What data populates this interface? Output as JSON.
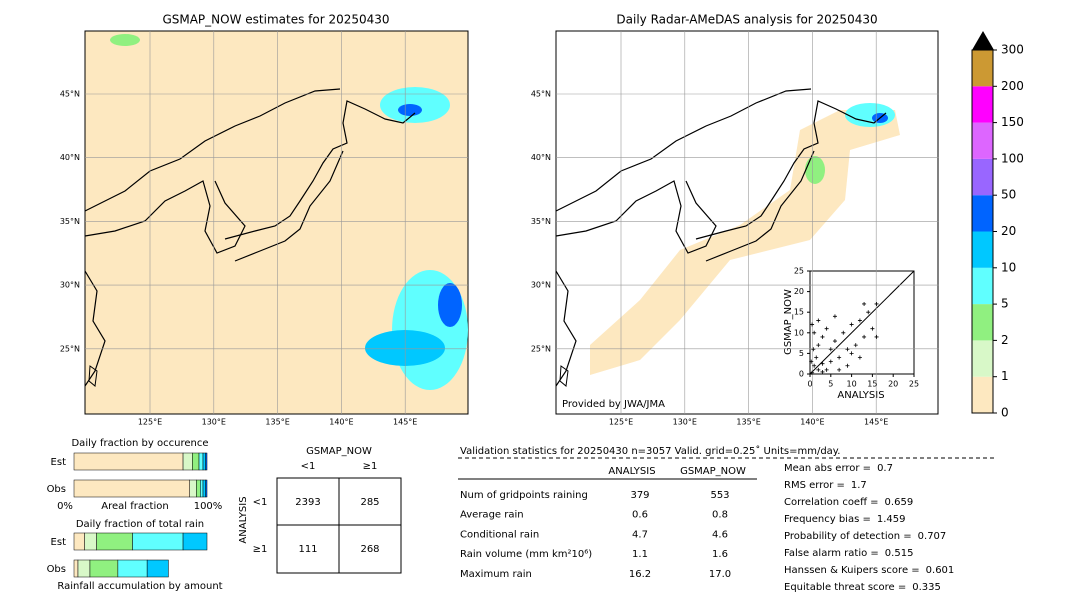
{
  "maps": [
    {
      "title": "GSMAP_NOW estimates for 20250430",
      "lat_labels": [
        "45°N",
        "40°N",
        "35°N",
        "30°N",
        "25°N"
      ],
      "lon_labels": [
        "125°E",
        "130°E",
        "135°E",
        "140°E",
        "145°E"
      ]
    },
    {
      "title": "Daily Radar-AMeDAS analysis for 20250430",
      "lat_labels": [
        "45°N",
        "40°N",
        "35°N",
        "30°N",
        "25°N"
      ],
      "lon_labels": [
        "125°E",
        "130°E",
        "135°E",
        "140°E",
        "145°E"
      ],
      "credit": "Provided by JWA/JMA"
    }
  ],
  "colorbar": {
    "ticks": [
      0,
      1,
      2,
      5,
      10,
      20,
      50,
      100,
      150,
      200,
      300
    ],
    "colors": [
      "#fde8c0",
      "#d8f8c8",
      "#90f080",
      "#60ffff",
      "#00c8ff",
      "#0064ff",
      "#9966ff",
      "#dd66ff",
      "#ff00ff",
      "#cc9933"
    ]
  },
  "scatter": {
    "xlabel": "ANALYSIS",
    "ylabel": "GSMAP_NOW",
    "xlim": [
      0,
      25
    ],
    "ylim": [
      0,
      25
    ],
    "xticks": [
      0,
      5,
      10,
      15,
      20,
      25
    ],
    "yticks": [
      0,
      5,
      10,
      15,
      20,
      25
    ],
    "points": [
      [
        0.5,
        0.3
      ],
      [
        1,
        2
      ],
      [
        2,
        1
      ],
      [
        1.5,
        4
      ],
      [
        3,
        2.5
      ],
      [
        0.8,
        6
      ],
      [
        4,
        1
      ],
      [
        2,
        7
      ],
      [
        5,
        3
      ],
      [
        6,
        8
      ],
      [
        3,
        9
      ],
      [
        7,
        4
      ],
      [
        8,
        10
      ],
      [
        9,
        6
      ],
      [
        10,
        12
      ],
      [
        11,
        7
      ],
      [
        12,
        13
      ],
      [
        13,
        9
      ],
      [
        14,
        15
      ],
      [
        15,
        11
      ],
      [
        16,
        17
      ],
      [
        10,
        5
      ],
      [
        6,
        14
      ],
      [
        4,
        11
      ],
      [
        12,
        4
      ],
      [
        1,
        10
      ],
      [
        0.5,
        12
      ],
      [
        2,
        13
      ],
      [
        9,
        2
      ],
      [
        7,
        1
      ],
      [
        16,
        9
      ],
      [
        13,
        17
      ],
      [
        3,
        0.5
      ],
      [
        0.3,
        3
      ],
      [
        5,
        6
      ]
    ]
  },
  "occurrence": {
    "title": "Daily fraction by occurence",
    "rows": [
      "Est",
      "Obs"
    ],
    "xlabel": "Areal fraction",
    "left": "0%",
    "right": "100%",
    "colors": [
      "#fde8c0",
      "#d8f8c8",
      "#90f080",
      "#60ffff",
      "#00c8ff",
      "#0064ff"
    ],
    "est": [
      82,
      7,
      5,
      3,
      2,
      1
    ],
    "obs": [
      87,
      5,
      3,
      2,
      2,
      1
    ]
  },
  "total_rain": {
    "title": "Daily fraction of total rain",
    "rows": [
      "Est",
      "Obs"
    ],
    "xlabel": "Rainfall accumulation by amount",
    "colors": [
      "#fde8c0",
      "#d8f8c8",
      "#90f080",
      "#60ffff",
      "#00c8ff"
    ],
    "est": [
      8,
      9,
      27,
      38,
      18
    ],
    "obs": [
      3,
      9,
      21,
      22,
      16
    ]
  },
  "contingency": {
    "title": "GSMAP_NOW",
    "cols": [
      "<1",
      "≥1"
    ],
    "ylabel": "ANALYSIS",
    "rows": [
      "<1",
      "≥1"
    ],
    "cells": [
      [
        "2393",
        "285"
      ],
      [
        "111",
        "268"
      ]
    ]
  },
  "validation": {
    "title": "Validation statistics for 20250430  n=3057 Valid. grid=0.25˚ Units=mm/day.",
    "cols": [
      "ANALYSIS",
      "GSMAP_NOW"
    ],
    "rows": [
      [
        "Num of gridpoints raining",
        "379",
        "553"
      ],
      [
        "Average rain",
        "0.6",
        "0.8"
      ],
      [
        "Conditional rain",
        "4.7",
        "4.6"
      ],
      [
        "Rain volume (mm km²10⁶)",
        "1.1",
        "1.6"
      ],
      [
        "Maximum rain",
        "16.2",
        "17.0"
      ]
    ],
    "scores": [
      [
        "Mean abs error =",
        "0.7"
      ],
      [
        "RMS error =",
        "1.7"
      ],
      [
        "Correlation coeff =",
        "0.659"
      ],
      [
        "Frequency bias =",
        "1.459"
      ],
      [
        "Probability of detection =",
        "0.707"
      ],
      [
        "False alarm ratio =",
        "0.515"
      ],
      [
        "Hanssen & Kuipers score =",
        "0.601"
      ],
      [
        "Equitable threat score =",
        "0.335"
      ]
    ]
  }
}
